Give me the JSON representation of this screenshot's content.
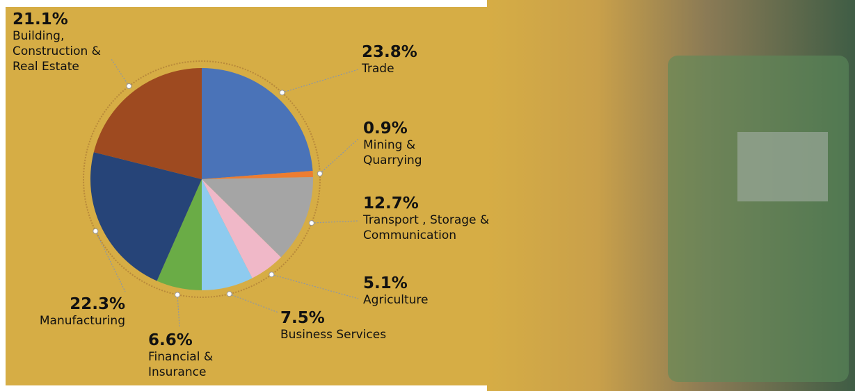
{
  "chart_data": {
    "type": "pie",
    "categories": [
      "Trade",
      "Mining & Quarrying",
      "Transport , Storage & Communication",
      "Agriculture",
      "Business Services",
      "Financial & Insurance",
      "Manufacturing",
      "Building, Construction & Real Estate"
    ],
    "values": [
      23.8,
      0.9,
      12.7,
      5.1,
      7.5,
      6.6,
      22.3,
      21.1
    ],
    "value_labels": [
      "23.8%",
      "0.9%",
      "12.7%",
      "5.1%",
      "7.5%",
      "6.6%",
      "22.3%",
      "21.1%"
    ],
    "colors": [
      "#4a73b8",
      "#ed7d31",
      "#a5a5a5",
      "#f0b8c8",
      "#8ecbef",
      "#6aac46",
      "#264478",
      "#9e4a20"
    ]
  }
}
